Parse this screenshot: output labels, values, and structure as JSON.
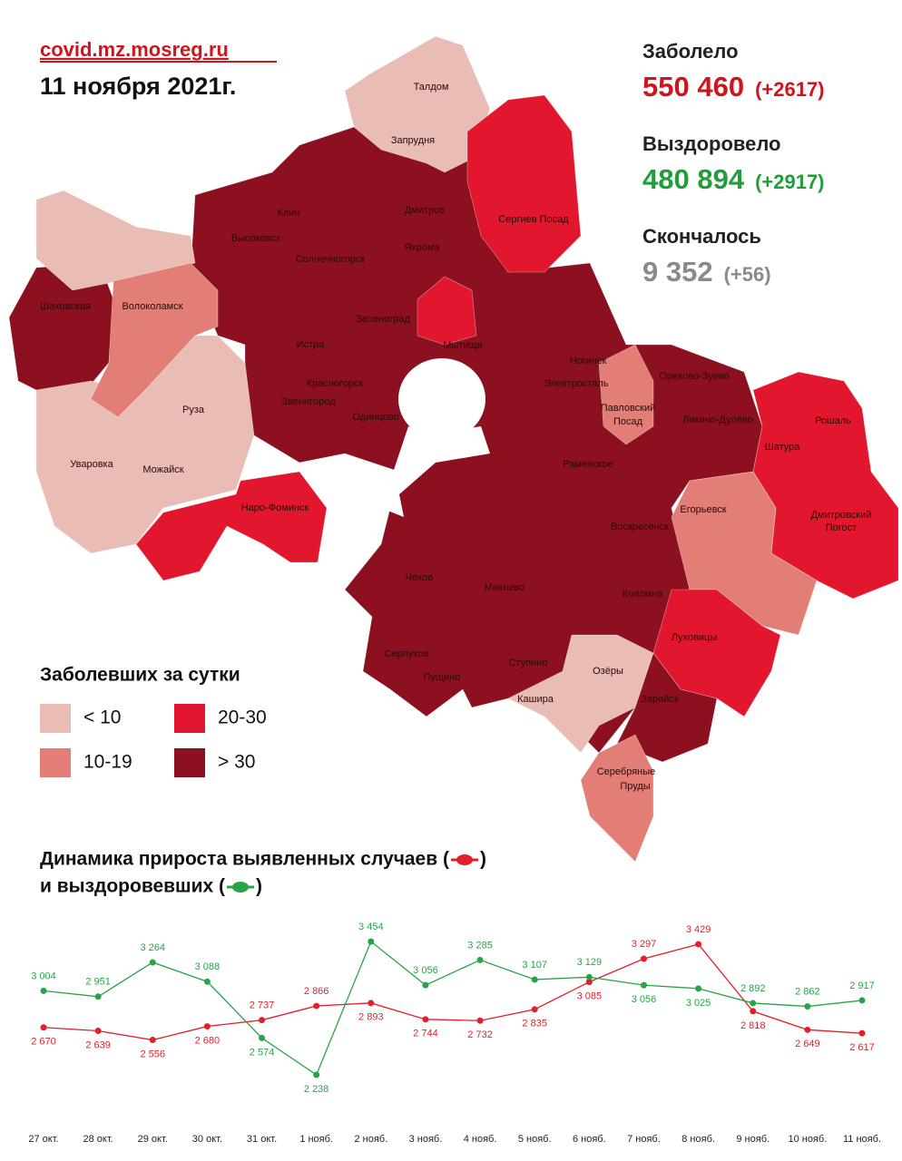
{
  "header": {
    "site": "covid.mz.mosreg.ru",
    "date": "11 ноября 2021г."
  },
  "stats": [
    {
      "label": "Заболело",
      "value": "550 460",
      "delta": "(+2617)",
      "color": "#d0141e"
    },
    {
      "label": "Выздоровело",
      "value": "480 894",
      "delta": "(+2917)",
      "color": "#1f9e3a"
    },
    {
      "label": "Скончалось",
      "value": "9 352",
      "delta": "(+56)",
      "color": "#8a8a8a"
    }
  ],
  "legend": {
    "title": "Заболевших за сутки",
    "items": [
      {
        "label": "< 10",
        "color": "#e9bdb6"
      },
      {
        "label": "10-19",
        "color": "#e27e76"
      },
      {
        "label": "20-30",
        "color": "#e2172d"
      },
      {
        "label": "> 30",
        "color": "#8c1020"
      }
    ]
  },
  "map": {
    "labels": [
      "Талдом",
      "Запрудня",
      "Клин",
      "Дмитров",
      "Сергиев Посад",
      "Высоковск",
      "Яхрома",
      "Солнечногорск",
      "Шаховская",
      "Волоколамск",
      "Зеленоград",
      "Истра",
      "Мытищи",
      "Ногинск",
      "Орехово-Зуево",
      "Красногорск",
      "Электросталь",
      "Павловский",
      "Посад",
      "Звенигород",
      "Руза",
      "Одинцово",
      "Ликино-Дулёво",
      "Рошаль",
      "Шатура",
      "Уваровка",
      "Можайск",
      "Раменское",
      "Наро-Фоминск",
      "Егорьевск",
      "Дмитровский",
      "Погост",
      "Воскресенск",
      "Чехов",
      "Михнево",
      "Коломна",
      "Луховицы",
      "Серпухов",
      "Озёры",
      "Ступино",
      "Пущино",
      "Кашира",
      "Зарайск",
      "Серебряные",
      "Пруды"
    ]
  },
  "chart_data": {
    "type": "line",
    "title": [
      {
        "before": "Динамика прироста выявленных случаев (",
        "after": ")"
      },
      {
        "before": "и выздоровевших (",
        "after": ")"
      }
    ],
    "categories": [
      "27 окт.",
      "28 окт.",
      "29 окт.",
      "30 окт.",
      "31 окт.",
      "1 нояб.",
      "2 нояб.",
      "3 нояб.",
      "4 нояб.",
      "5 нояб.",
      "6 нояб.",
      "7 нояб.",
      "8 нояб.",
      "9 нояб.",
      "10 нояб.",
      "11 нояб."
    ],
    "series": [
      {
        "color": "#e0202a",
        "values": [
          2670,
          2639,
          2556,
          2680,
          2737,
          2866,
          2893,
          2744,
          2732,
          2835,
          3085,
          3297,
          3429,
          2818,
          2649,
          2617
        ],
        "value_labels": [
          "2 670",
          "2 639",
          "2 556",
          "2 680",
          "2 737",
          "2 866",
          "2 893",
          "2 744",
          "2 732",
          "2 835",
          "3 085",
          "3 297",
          "3 429",
          "2 818",
          "2 649",
          "2 617"
        ]
      },
      {
        "color": "#27a348",
        "values": [
          3004,
          2951,
          3264,
          3088,
          2574,
          2238,
          3454,
          3056,
          3285,
          3107,
          3129,
          3056,
          3025,
          2892,
          2862,
          2917
        ],
        "value_labels": [
          "3 004",
          "2 951",
          "3 264",
          "3 088",
          "2 574",
          "2 238",
          "3 454",
          "3 056",
          "3 285",
          "3 107",
          "3 129",
          "3 056",
          "3 025",
          "2 892",
          "2 862",
          "2 917"
        ]
      }
    ]
  }
}
